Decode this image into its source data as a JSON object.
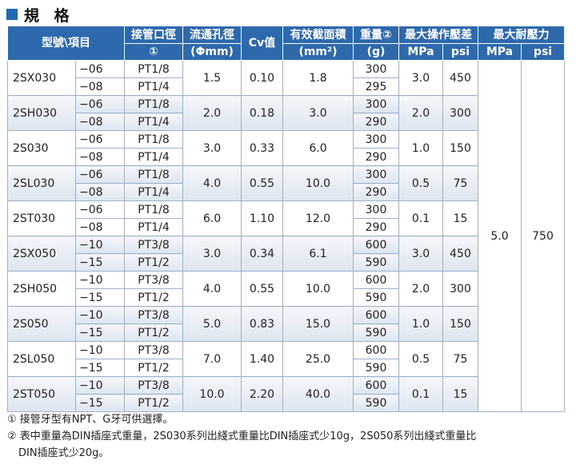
{
  "heading": {
    "title": "規 格"
  },
  "table": {
    "headers": {
      "model": "型號\\項目",
      "port": "接管口徑",
      "port_sub": "①",
      "orifice": "流通孔徑",
      "orifice_sub": "(Φmm)",
      "cv": "Cv值",
      "area": "有效截面積",
      "area_sub": "(mm²)",
      "weight": "重量②",
      "weight_sub": "(g)",
      "max_op": "最大操作壓差",
      "max_op_mpa": "MPa",
      "max_op_psi": "psi",
      "max_proof": "最大耐壓力",
      "max_proof_mpa": "MPa",
      "max_proof_psi": "psi"
    },
    "proof_mpa": "5.0",
    "proof_psi": "750",
    "models": [
      {
        "model": "2SX030",
        "variants": [
          "−06",
          "−08"
        ],
        "ports": [
          "PT1/8",
          "PT1/4"
        ],
        "orifice": "1.5",
        "cv": "0.10",
        "area": "1.8",
        "weights": [
          "300",
          "295"
        ],
        "mpa": "3.0",
        "psi": "450"
      },
      {
        "model": "2SH030",
        "variants": [
          "−06",
          "−08"
        ],
        "ports": [
          "PT1/8",
          "PT1/4"
        ],
        "orifice": "2.0",
        "cv": "0.18",
        "area": "3.0",
        "weights": [
          "300",
          "290"
        ],
        "mpa": "2.0",
        "psi": "300"
      },
      {
        "model": "2S030",
        "variants": [
          "−06",
          "−08"
        ],
        "ports": [
          "PT1/8",
          "PT1/4"
        ],
        "orifice": "3.0",
        "cv": "0.33",
        "area": "6.0",
        "weights": [
          "300",
          "290"
        ],
        "mpa": "1.0",
        "psi": "150"
      },
      {
        "model": "2SL030",
        "variants": [
          "−06",
          "−08"
        ],
        "ports": [
          "PT1/8",
          "PT1/4"
        ],
        "orifice": "4.0",
        "cv": "0.55",
        "area": "10.0",
        "weights": [
          "300",
          "290"
        ],
        "mpa": "0.5",
        "psi": "75"
      },
      {
        "model": "2ST030",
        "variants": [
          "−06",
          "−08"
        ],
        "ports": [
          "PT1/8",
          "PT1/4"
        ],
        "orifice": "6.0",
        "cv": "1.10",
        "area": "12.0",
        "weights": [
          "300",
          "290"
        ],
        "mpa": "0.1",
        "psi": "15"
      },
      {
        "model": "2SX050",
        "variants": [
          "−10",
          "−15"
        ],
        "ports": [
          "PT3/8",
          "PT1/2"
        ],
        "orifice": "3.0",
        "cv": "0.34",
        "area": "6.1",
        "weights": [
          "600",
          "590"
        ],
        "mpa": "3.0",
        "psi": "450"
      },
      {
        "model": "2SH050",
        "variants": [
          "−10",
          "−15"
        ],
        "ports": [
          "PT3/8",
          "PT1/2"
        ],
        "orifice": "4.0",
        "cv": "0.55",
        "area": "10.0",
        "weights": [
          "600",
          "590"
        ],
        "mpa": "2.0",
        "psi": "300"
      },
      {
        "model": "2S050",
        "variants": [
          "−10",
          "−15"
        ],
        "ports": [
          "PT3/8",
          "PT1/2"
        ],
        "orifice": "5.0",
        "cv": "0.83",
        "area": "15.0",
        "weights": [
          "600",
          "590"
        ],
        "mpa": "1.0",
        "psi": "150"
      },
      {
        "model": "2SL050",
        "variants": [
          "−10",
          "−15"
        ],
        "ports": [
          "PT3/8",
          "PT1/2"
        ],
        "orifice": "7.0",
        "cv": "1.40",
        "area": "25.0",
        "weights": [
          "600",
          "590"
        ],
        "mpa": "0.5",
        "psi": "75"
      },
      {
        "model": "2ST050",
        "variants": [
          "−10",
          "−15"
        ],
        "ports": [
          "PT3/8",
          "PT1/2"
        ],
        "orifice": "10.0",
        "cv": "2.20",
        "area": "40.0",
        "weights": [
          "600",
          "590"
        ],
        "mpa": "0.1",
        "psi": "15"
      }
    ]
  },
  "notes": {
    "line1": "① 接管牙型有NPT、G牙可供選擇。",
    "line2": "② 表中重量為DIN插座式重量，2S030系列出綫式重量比DIN插座式少10g，2S050系列出綫式重量比",
    "line3": "DIN插座式少20g。"
  },
  "colors": {
    "header_bg": "#2f69ad",
    "accent": "#1f6ab1",
    "grid": "#9fb0c6"
  }
}
